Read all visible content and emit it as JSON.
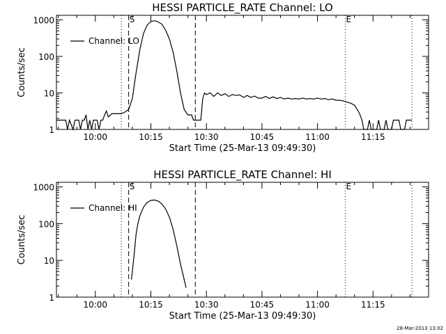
{
  "footer": {
    "stamp": "28-Mar-2013 13:02"
  },
  "chart_data": [
    {
      "type": "line",
      "title": "HESSI PARTICLE_RATE Channel: LO",
      "xlabel": "Start Time (25-Mar-13 09:49:30)",
      "ylabel": "Counts/sec",
      "yscale": "log",
      "ylim": [
        1,
        1000
      ],
      "xlim": [
        "09:49:30",
        "11:30:00"
      ],
      "xticks": [
        "10:00",
        "10:15",
        "10:30",
        "10:45",
        "11:00",
        "11:15"
      ],
      "yticks": [
        "1",
        "10",
        "100",
        "1000"
      ],
      "legend": {
        "position": "top-left",
        "entries": [
          "Channel: LO"
        ]
      },
      "markers": [
        {
          "label": "",
          "time": "09:49:30",
          "style": "dotted"
        },
        {
          "label": "",
          "time": "10:07:00",
          "style": "dotted"
        },
        {
          "label": "S",
          "time": "10:09:00",
          "style": "dashed"
        },
        {
          "label": "",
          "time": "10:27:00",
          "style": "dashed"
        },
        {
          "label": "E",
          "time": "11:07:30",
          "style": "dotted"
        },
        {
          "label": "",
          "time": "11:25:30",
          "style": "dotted"
        }
      ],
      "series": [
        {
          "name": "Channel: LO",
          "points": [
            [
              "09:49:30",
              1.8
            ],
            [
              "09:52:00",
              1.8
            ],
            [
              "09:52:30",
              1.0
            ],
            [
              "09:53:00",
              1.8
            ],
            [
              "09:54:00",
              1.0
            ],
            [
              "09:54:30",
              1.8
            ],
            [
              "09:55:30",
              1.8
            ],
            [
              "09:56:00",
              1.0
            ],
            [
              "09:56:30",
              1.8
            ],
            [
              "09:57:00",
              1.8
            ],
            [
              "09:57:30",
              2.5
            ],
            [
              "09:58:00",
              1.0
            ],
            [
              "09:58:30",
              1.8
            ],
            [
              "09:59:00",
              1.0
            ],
            [
              "09:59:30",
              1.8
            ],
            [
              "10:00:30",
              1.8
            ],
            [
              "10:01:00",
              1.0
            ],
            [
              "10:01:30",
              1.8
            ],
            [
              "10:02:00",
              1.8
            ],
            [
              "10:02:30",
              2.5
            ],
            [
              "10:03:00",
              3.2
            ],
            [
              "10:03:30",
              2.2
            ],
            [
              "10:04:30",
              2.7
            ],
            [
              "10:06:00",
              2.7
            ],
            [
              "10:07:00",
              2.7
            ],
            [
              "10:08:00",
              3.0
            ],
            [
              "10:09:00",
              3.5
            ],
            [
              "10:10:00",
              7
            ],
            [
              "10:11:00",
              35
            ],
            [
              "10:12:00",
              150
            ],
            [
              "10:13:00",
              420
            ],
            [
              "10:14:00",
              720
            ],
            [
              "10:15:00",
              900
            ],
            [
              "10:16:00",
              950
            ],
            [
              "10:17:00",
              880
            ],
            [
              "10:18:00",
              760
            ],
            [
              "10:19:00",
              520
            ],
            [
              "10:20:00",
              300
            ],
            [
              "10:21:00",
              130
            ],
            [
              "10:22:00",
              40
            ],
            [
              "10:23:00",
              10
            ],
            [
              "10:24:00",
              3.5
            ],
            [
              "10:25:00",
              2.5
            ],
            [
              "10:26:00",
              2.5
            ],
            [
              "10:26:30",
              1.8
            ],
            [
              "10:28:30",
              1.8
            ],
            [
              "10:29:00",
              7
            ],
            [
              "10:29:30",
              10
            ],
            [
              "10:30:00",
              9
            ],
            [
              "10:31:00",
              10
            ],
            [
              "10:32:00",
              8
            ],
            [
              "10:33:00",
              10
            ],
            [
              "10:34:00",
              8.5
            ],
            [
              "10:35:00",
              9.5
            ],
            [
              "10:36:00",
              8
            ],
            [
              "10:37:00",
              9
            ],
            [
              "10:38:00",
              8.5
            ],
            [
              "10:39:00",
              8.8
            ],
            [
              "10:40:00",
              7.5
            ],
            [
              "10:41:00",
              8.5
            ],
            [
              "10:42:00",
              7.5
            ],
            [
              "10:43:00",
              8.2
            ],
            [
              "10:44:00",
              7.2
            ],
            [
              "10:45:00",
              7.2
            ],
            [
              "10:46:00",
              8
            ],
            [
              "10:47:00",
              7
            ],
            [
              "10:48:00",
              7.8
            ],
            [
              "10:49:00",
              7
            ],
            [
              "10:50:00",
              7.5
            ],
            [
              "10:51:00",
              6.8
            ],
            [
              "10:52:00",
              7.2
            ],
            [
              "10:53:00",
              6.8
            ],
            [
              "10:54:00",
              7
            ],
            [
              "10:55:00",
              6.8
            ],
            [
              "10:56:00",
              7.2
            ],
            [
              "10:57:00",
              6.8
            ],
            [
              "10:58:00",
              7
            ],
            [
              "10:59:00",
              6.8
            ],
            [
              "11:00:00",
              7.2
            ],
            [
              "11:01:00",
              6.8
            ],
            [
              "11:02:00",
              7
            ],
            [
              "11:03:00",
              6.5
            ],
            [
              "11:04:00",
              6.8
            ],
            [
              "11:05:00",
              6.3
            ],
            [
              "11:06:00",
              6.3
            ],
            [
              "11:07:00",
              6
            ],
            [
              "11:08:00",
              5.6
            ],
            [
              "11:09:00",
              5.2
            ],
            [
              "11:10:00",
              4.6
            ],
            [
              "11:10:30",
              3.8
            ],
            [
              "11:11:00",
              3.2
            ],
            [
              "11:11:30",
              2.5
            ],
            [
              "11:12:00",
              1.8
            ],
            [
              "11:12:30",
              1.0
            ],
            [
              "11:13:30",
              1.0
            ],
            [
              "11:14:00",
              1.8
            ],
            [
              "11:14:30",
              1.0
            ],
            [
              "11:16:00",
              1.0
            ],
            [
              "11:16:30",
              1.8
            ],
            [
              "11:17:00",
              1.0
            ],
            [
              "11:18:00",
              1.0
            ],
            [
              "11:18:30",
              1.8
            ],
            [
              "11:19:00",
              1.0
            ],
            [
              "11:20:00",
              1.0
            ],
            [
              "11:20:30",
              1.8
            ],
            [
              "11:22:00",
              1.8
            ],
            [
              "11:22:30",
              1.0
            ],
            [
              "11:23:30",
              1.0
            ],
            [
              "11:24:00",
              1.8
            ],
            [
              "11:25:30",
              1.8
            ]
          ]
        }
      ]
    },
    {
      "type": "line",
      "title": "HESSI PARTICLE_RATE Channel: HI",
      "xlabel": "Start Time (25-Mar-13 09:49:30)",
      "ylabel": "Counts/sec",
      "yscale": "log",
      "ylim": [
        1,
        1000
      ],
      "xlim": [
        "09:49:30",
        "11:30:00"
      ],
      "xticks": [
        "10:00",
        "10:15",
        "10:30",
        "10:45",
        "11:00",
        "11:15"
      ],
      "yticks": [
        "1",
        "10",
        "100",
        "1000"
      ],
      "legend": {
        "position": "top-left",
        "entries": [
          "Channel: HI"
        ]
      },
      "markers": [
        {
          "label": "",
          "time": "09:49:30",
          "style": "dotted"
        },
        {
          "label": "",
          "time": "10:07:00",
          "style": "dotted"
        },
        {
          "label": "S",
          "time": "10:09:00",
          "style": "dashed"
        },
        {
          "label": "",
          "time": "10:27:00",
          "style": "dashed"
        },
        {
          "label": "E",
          "time": "11:07:30",
          "style": "dotted"
        },
        {
          "label": "",
          "time": "11:25:30",
          "style": "dotted"
        }
      ],
      "series": [
        {
          "name": "Channel: HI",
          "points": [
            [
              "10:09:45",
              3
            ],
            [
              "10:10:00",
              5
            ],
            [
              "10:10:30",
              15
            ],
            [
              "10:11:00",
              50
            ],
            [
              "10:11:30",
              100
            ],
            [
              "10:12:00",
              160
            ],
            [
              "10:13:00",
              280
            ],
            [
              "10:14:00",
              380
            ],
            [
              "10:15:00",
              430
            ],
            [
              "10:16:00",
              440
            ],
            [
              "10:17:00",
              410
            ],
            [
              "10:18:00",
              340
            ],
            [
              "10:19:00",
              250
            ],
            [
              "10:20:00",
              150
            ],
            [
              "10:21:00",
              70
            ],
            [
              "10:22:00",
              25
            ],
            [
              "10:23:00",
              8
            ],
            [
              "10:24:00",
              3
            ],
            [
              "10:24:30",
              1.8
            ]
          ]
        }
      ]
    }
  ]
}
